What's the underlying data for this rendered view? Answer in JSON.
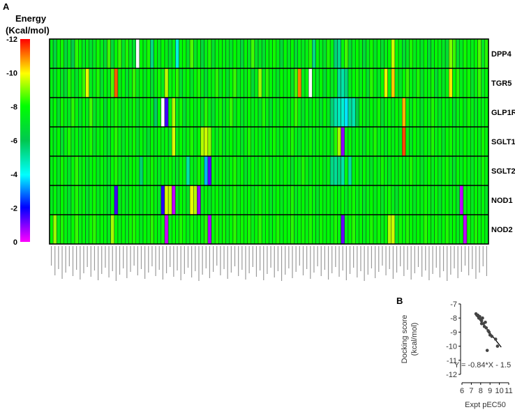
{
  "panel_a": {
    "label": "A",
    "colorbar": {
      "title_line1": "Energy",
      "title_line2": "(Kcal/mol)",
      "ticks": [
        "-12",
        "-10",
        "-8",
        "-6",
        "-4",
        "-2",
        "0"
      ]
    }
  },
  "panel_b": {
    "label": "B"
  },
  "chart_data": [
    {
      "type": "heatmap",
      "title": "",
      "value_label": "Energy (Kcal/mol)",
      "value_range": [
        -12,
        0
      ],
      "rows": [
        "DPP4",
        "TGR5",
        "GLP1R",
        "SGLT1",
        "SGLT2",
        "NOD1",
        "NOD2"
      ],
      "n_columns": 122,
      "column_labels_legible": false,
      "values": [
        [
          -7.5,
          -6.5,
          -7.8,
          -8.1,
          -6.6,
          -7.4,
          -6.2,
          -8.3,
          -8.0,
          -7.2,
          -7.6,
          -6.9,
          -7.3,
          -8.1,
          -7.4,
          -6.8,
          -8.5,
          -6.6,
          -7.9,
          -8.4,
          -7.0,
          -8.2,
          -7.4,
          -6.9,
          null,
          -7.9,
          -7.4,
          -8.2,
          -5.4,
          -7.9,
          -7.2,
          -8.0,
          -7.5,
          -6.8,
          -7.6,
          -4.4,
          -7.8,
          -7.9,
          -7.1,
          -8.6,
          -7.2,
          -7.8,
          -6.6,
          -7.5,
          -8.2,
          -6.9,
          -7.7,
          -8.0,
          -7.6,
          -7.4,
          -7.1,
          -8.0,
          -7.5,
          -6.6,
          -7.9,
          -7.2,
          -8.5,
          -7.0,
          -7.3,
          -6.9,
          -7.7,
          -7.8,
          -8.1,
          -7.5,
          -6.7,
          -7.9,
          -7.1,
          -8.0,
          -6.8,
          -7.7,
          -7.3,
          -7.6,
          -8.3,
          -5.4,
          -7.8,
          -7.4,
          -7.0,
          -8.2,
          -7.6,
          -5.6,
          -5.3,
          -7.7,
          -8.5,
          -6.9,
          -7.4,
          -8.0,
          -7.5,
          -6.7,
          -7.4,
          -8.1,
          -7.2,
          -7.8,
          -6.9,
          -7.5,
          -8.0,
          -9.6,
          -7.9,
          -7.7,
          -6.8,
          -7.3,
          -8.2,
          -7.4,
          -7.7,
          -7.1,
          -8.0,
          -6.7,
          -7.5,
          -7.9,
          -7.6,
          -7.2,
          -6.8,
          -9.0,
          -8.4,
          -7.0,
          -7.3,
          -8.1,
          -7.7,
          -7.5,
          -7.9,
          -8.6,
          -7.2,
          -8.3
        ],
        [
          -7.6,
          -7.0,
          -8.0,
          -7.2,
          -6.8,
          -8.2,
          -7.6,
          -7.0,
          -7.9,
          -8.4,
          -9.8,
          -7.3,
          -7.5,
          -8.2,
          -6.9,
          -7.8,
          -7.4,
          -8.6,
          -11.3,
          -7.5,
          -7.9,
          -7.0,
          -7.6,
          -8.4,
          -7.3,
          -7.9,
          -7.2,
          -8.0,
          -6.8,
          -7.6,
          -8.1,
          -7.4,
          -9.5,
          -7.7,
          -7.9,
          -8.3,
          -6.9,
          -7.6,
          -8.0,
          -7.1,
          -7.8,
          -8.2,
          -7.5,
          -6.8,
          -7.9,
          -7.6,
          -8.3,
          -7.3,
          -8.0,
          -7.0,
          -7.8,
          -8.4,
          -7.2,
          -7.6,
          -7.4,
          -8.1,
          -6.7,
          -7.5,
          -9.2,
          -7.3,
          -8.3,
          -7.8,
          -7.6,
          -7.1,
          -8.0,
          -7.5,
          -7.9,
          -7.2,
          -8.5,
          -11.0,
          -7.4,
          -7.8,
          null,
          -7.6,
          -7.3,
          -8.0,
          -6.8,
          -7.9,
          -7.2,
          -7.6,
          -5.2,
          -5.0,
          -5.5,
          -7.4,
          -7.8,
          -8.1,
          -7.5,
          -7.9,
          -6.9,
          -8.3,
          -7.6,
          -7.2,
          -8.0,
          -9.8,
          -7.7,
          -10.4,
          -7.5,
          -7.1,
          -7.9,
          -8.4,
          -7.6,
          -7.3,
          -8.2,
          -7.0,
          -7.8,
          -7.5,
          -8.1,
          -6.8,
          -7.7,
          -7.2,
          -7.6,
          -10.2,
          -7.9,
          -8.3,
          -7.4,
          -7.7,
          -8.1,
          -7.0,
          -7.6,
          -8.4,
          -7.3,
          -7.9
        ],
        [
          -7.4,
          -7.9,
          -6.9,
          -8.1,
          -7.5,
          -7.2,
          -8.3,
          -7.7,
          -7.0,
          -7.9,
          -7.4,
          -8.5,
          -7.1,
          -7.6,
          -8.0,
          -6.8,
          -7.9,
          -7.4,
          -8.2,
          -7.6,
          -7.1,
          -7.9,
          -7.4,
          -8.1,
          -6.9,
          -7.7,
          -7.3,
          -8.0,
          -7.5,
          -5.8,
          -7.9,
          null,
          -1.5,
          -7.6,
          -9.4,
          -7.4,
          -8.1,
          -6.9,
          -7.6,
          -8.0,
          -7.3,
          -7.8,
          -7.0,
          -8.3,
          -7.5,
          -6.9,
          -7.8,
          -8.1,
          -7.2,
          -7.6,
          -8.4,
          -7.3,
          -7.9,
          -7.1,
          -7.5,
          -8.0,
          -7.4,
          -7.8,
          -7.1,
          -8.2,
          -7.5,
          -6.9,
          -7.9,
          -7.3,
          -8.0,
          -7.6,
          -7.2,
          -7.9,
          -8.4,
          -7.6,
          -7.1,
          -7.8,
          -7.3,
          -8.0,
          -7.5,
          -7.0,
          -7.9,
          -7.3,
          -5.6,
          -5.0,
          -4.8,
          -4.5,
          -3.8,
          -5.2,
          -4.9,
          -6.2,
          -7.8,
          -7.5,
          -7.2,
          -7.9,
          -7.4,
          -8.1,
          -6.9,
          -7.6,
          -7.9,
          -7.3,
          -8.0,
          -7.5,
          -10.6,
          -7.8,
          -7.3,
          -8.1,
          -7.6,
          -7.0,
          -7.9,
          -7.4,
          -8.2,
          -7.6,
          -7.1,
          -7.8,
          -7.4,
          -8.0,
          -6.9,
          -7.6,
          -7.9,
          -7.3,
          -8.1,
          -7.5,
          -7.2,
          -7.8,
          -7.5,
          -7.9
        ],
        [
          -7.7,
          -7.3,
          -8.0,
          -6.9,
          -7.6,
          -8.2,
          -7.4,
          -7.8,
          -7.1,
          -7.9,
          -7.5,
          -8.2,
          -7.1,
          -7.7,
          -8.0,
          -7.4,
          -7.0,
          -7.9,
          -8.3,
          -7.6,
          -7.2,
          -7.9,
          -7.5,
          -8.1,
          -7.0,
          -7.8,
          -7.4,
          -6.9,
          -7.9,
          -7.3,
          -8.0,
          -7.5,
          -7.8,
          -7.1,
          -9.7,
          -7.5,
          -8.0,
          -7.3,
          -7.7,
          -8.2,
          -7.4,
          -7.9,
          -9.4,
          -9.6,
          -9.1,
          -7.7,
          -7.4,
          -8.1,
          -7.2,
          -7.6,
          -8.0,
          -7.4,
          -7.8,
          -7.1,
          -7.6,
          -8.2,
          -7.3,
          -7.9,
          -7.5,
          -8.0,
          -7.2,
          -7.7,
          -8.1,
          -7.4,
          -7.9,
          -7.2,
          -7.8,
          -8.2,
          -7.5,
          -7.1,
          -7.9,
          -7.5,
          -8.1,
          -7.3,
          -7.7,
          -8.0,
          -7.4,
          -7.8,
          -7.0,
          -8.3,
          -9.3,
          -0.9,
          -7.6,
          -7.9,
          -7.3,
          -8.0,
          -7.6,
          -7.1,
          -7.9,
          -7.5,
          -8.2,
          -7.4,
          -7.8,
          -7.2,
          -8.0,
          -7.5,
          -7.9,
          -7.3,
          -11.4,
          -7.7,
          -7.2,
          -8.0,
          -7.6,
          -7.1,
          -7.9,
          -7.4,
          -8.2,
          -7.5,
          -7.8,
          -7.1,
          -7.9,
          -8.1,
          -7.4,
          -7.7,
          -7.2,
          -8.0,
          -7.6,
          -7.3,
          -7.9,
          -7.5,
          -8.1,
          -7.7
        ],
        [
          -7.5,
          -7.9,
          -7.2,
          -8.1,
          -7.6,
          -7.0,
          -7.8,
          -8.3,
          -7.4,
          -7.9,
          -7.1,
          -7.7,
          -8.0,
          -7.3,
          -7.8,
          -7.5,
          -7.0,
          -7.9,
          -8.2,
          -7.4,
          -7.7,
          -7.1,
          -7.9,
          -8.0,
          -7.5,
          -5.6,
          -7.8,
          -7.3,
          -8.1,
          -7.6,
          -7.2,
          -7.9,
          -7.4,
          -8.0,
          -7.6,
          -7.1,
          -7.9,
          -7.5,
          -5.0,
          -7.6,
          -7.3,
          -8.1,
          -7.5,
          -3.4,
          -1.3,
          -7.9,
          -7.4,
          -8.0,
          -7.6,
          -7.2,
          -7.8,
          -8.2,
          -7.4,
          -7.9,
          -7.1,
          -7.6,
          -8.0,
          -7.3,
          -7.8,
          -7.5,
          -8.1,
          -7.2,
          -7.7,
          -7.9,
          -7.3,
          -8.0,
          -7.5,
          -7.1,
          -7.8,
          -7.4,
          -8.2,
          -7.6,
          -7.2,
          -7.9,
          -7.5,
          -8.0,
          -7.3,
          -7.7,
          -5.4,
          -5.2,
          -5.5,
          -5.0,
          -7.8,
          -5.1,
          -7.6,
          -8.0,
          -7.3,
          -7.9,
          -7.5,
          -7.1,
          -7.8,
          -7.4,
          -8.1,
          -7.6,
          -7.2,
          -7.9,
          -7.5,
          -8.0,
          -7.3,
          -7.7,
          -8.2,
          -7.4,
          -7.8,
          -7.1,
          -7.6,
          -8.0,
          -7.4,
          -7.9,
          -7.2,
          -7.7,
          -8.1,
          -7.5,
          -7.0,
          -7.9,
          -7.4,
          -8.0,
          -7.6,
          -7.2,
          -7.8,
          -7.5,
          -8.1,
          -7.6
        ],
        [
          -7.3,
          -7.8,
          -7.1,
          -8.0,
          -7.5,
          -6.9,
          -7.7,
          -8.2,
          -7.4,
          -7.9,
          -7.0,
          -7.6,
          -8.1,
          -7.3,
          -7.8,
          -7.5,
          -6.9,
          -7.9,
          -1.5,
          -7.4,
          -7.7,
          -7.1,
          -7.9,
          -8.0,
          -7.5,
          -7.0,
          -7.8,
          -7.3,
          -8.1,
          -7.6,
          -7.2,
          -1.7,
          -9.7,
          -9.5,
          -0.5,
          -7.4,
          -8.0,
          -7.6,
          -7.1,
          -9.8,
          -9.4,
          -0.8,
          -7.5,
          -7.9,
          -7.2,
          -7.7,
          -8.0,
          -7.4,
          -7.8,
          -7.1,
          -7.6,
          -8.2,
          -7.3,
          -7.9,
          -7.5,
          -8.0,
          -7.2,
          -7.7,
          -8.1,
          -7.4,
          -7.9,
          -7.1,
          -7.6,
          -8.0,
          -7.3,
          -7.8,
          -7.5,
          -8.2,
          -7.2,
          -7.7,
          -7.9,
          -7.4,
          -8.1,
          -7.6,
          -7.1,
          -7.9,
          -7.5,
          -7.8,
          -7.3,
          -8.0,
          -7.5,
          -7.9,
          -7.2,
          -7.7,
          -8.1,
          -7.4,
          -7.8,
          -7.1,
          -7.6,
          -8.0,
          -7.4,
          -7.9,
          -7.2,
          -7.7,
          -8.1,
          -7.5,
          -7.0,
          -7.9,
          -7.4,
          -8.0,
          -7.6,
          -7.2,
          -7.8,
          -7.5,
          -8.1,
          -7.6,
          -7.3,
          -7.9,
          -7.1,
          -7.7,
          -8.0,
          -7.4,
          -7.8,
          -7.1,
          -0.5,
          -7.6,
          -7.9,
          -7.3,
          -8.0,
          -7.5,
          -7.8,
          -7.2
        ],
        [
          -8.0,
          -9.2,
          -7.5,
          -8.2,
          -7.7,
          -7.3,
          -8.0,
          -8.4,
          -7.6,
          -7.9,
          -7.4,
          -8.1,
          -8.3,
          -7.6,
          -7.9,
          -7.8,
          -7.3,
          -9.3,
          -7.9,
          -7.6,
          -8.0,
          -7.4,
          -8.1,
          -8.2,
          -7.8,
          -7.3,
          -8.0,
          -7.6,
          -8.3,
          -7.9,
          -7.5,
          -8.1,
          -0.4,
          -7.6,
          -8.0,
          -7.7,
          -8.2,
          -7.9,
          -7.4,
          -8.1,
          -7.6,
          -7.9,
          -7.8,
          -8.3,
          -0.6,
          -8.0,
          -8.2,
          -7.7,
          -8.1,
          -7.4,
          -7.9,
          -8.3,
          -7.6,
          -8.1,
          -7.8,
          -8.2,
          -7.5,
          -7.9,
          -8.3,
          -7.7,
          -8.0,
          -7.4,
          -7.9,
          -8.2,
          -7.6,
          -8.0,
          -7.8,
          -8.3,
          -7.5,
          -7.9,
          -8.1,
          -7.7,
          -8.2,
          -7.8,
          -7.4,
          -8.1,
          -7.7,
          -7.9,
          -7.6,
          -8.2,
          -7.7,
          -1.2,
          -7.5,
          -8.0,
          -8.3,
          -7.6,
          -7.9,
          -7.4,
          -7.8,
          -8.2,
          -7.6,
          -8.1,
          -7.5,
          -7.9,
          -9.4,
          -9.6,
          -7.3,
          -8.1,
          -7.7,
          -8.2,
          -7.9,
          -7.5,
          -8.0,
          -7.7,
          -8.3,
          -7.9,
          -7.6,
          -8.1,
          -7.4,
          -7.9,
          -8.2,
          -7.7,
          -8.0,
          -7.4,
          -7.9,
          -0.5,
          -8.1,
          -7.6,
          -8.2,
          -7.8,
          -8.0,
          -7.5
        ]
      ]
    },
    {
      "type": "scatter",
      "title": "",
      "xlabel": "Expt pEC50",
      "ylabel_line1": "Docking score",
      "ylabel_line2": "(kcal/mol)",
      "xlim": [
        6,
        11
      ],
      "ylim": [
        -12,
        -7
      ],
      "xticks": [
        "6",
        "7",
        "8",
        "9",
        "10",
        "11"
      ],
      "yticks": [
        "-7",
        "-8",
        "-9",
        "-10",
        "-11",
        "-12"
      ],
      "points": [
        [
          7.5,
          -7.7
        ],
        [
          7.7,
          -7.8
        ],
        [
          7.8,
          -8.0
        ],
        [
          7.9,
          -7.9
        ],
        [
          8.0,
          -8.1
        ],
        [
          8.1,
          -8.2
        ],
        [
          8.2,
          -8.0
        ],
        [
          8.3,
          -8.4
        ],
        [
          8.4,
          -8.6
        ],
        [
          8.5,
          -8.3
        ],
        [
          8.6,
          -8.7
        ],
        [
          8.8,
          -8.9
        ],
        [
          8.9,
          -9.0
        ],
        [
          9.0,
          -9.2
        ],
        [
          9.2,
          -9.3
        ],
        [
          9.6,
          -9.5
        ],
        [
          8.7,
          -10.3
        ],
        [
          9.8,
          -10.0
        ],
        [
          7.6,
          -7.8
        ],
        [
          8.1,
          -8.4
        ]
      ],
      "fit": {
        "slope": -0.84,
        "intercept": -1.5,
        "x_range": [
          7.4,
          10.2
        ]
      },
      "equation": "Y = -0.84*X - 1.5"
    }
  ]
}
